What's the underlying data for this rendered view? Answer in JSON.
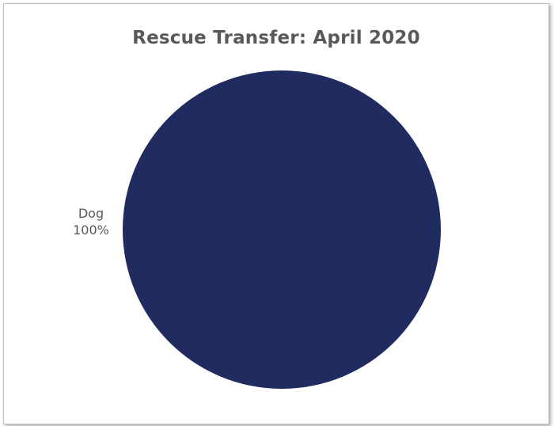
{
  "chart_data": {
    "type": "pie",
    "title": "Rescue Transfer: April 2020",
    "slices": [
      {
        "label": "Dog",
        "value": 100,
        "percent_label": "100%",
        "color": "#202b60"
      }
    ]
  }
}
